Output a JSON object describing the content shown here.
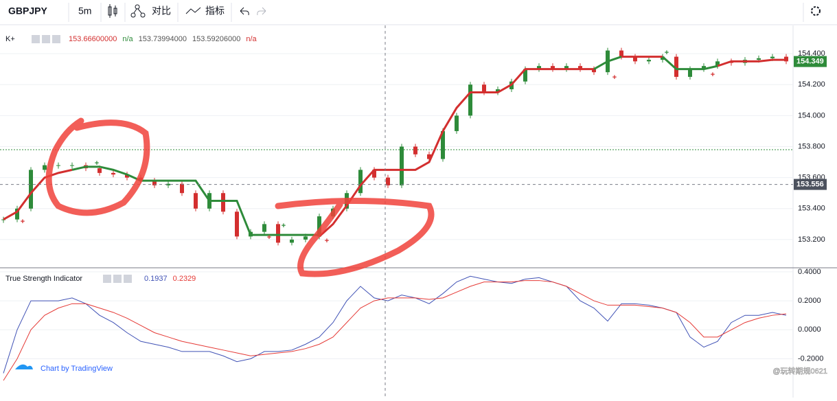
{
  "toolbar": {
    "symbol": "GBPJPY",
    "interval": "5m",
    "compare": "对比",
    "indicators": "指标"
  },
  "branding": "Chart by TradingView",
  "watermark": "@玩转期规0621",
  "chart_data": [
    {
      "type": "candlestick",
      "name": "K+",
      "readout": [
        "153.66600000",
        "n/a",
        "153.73994000",
        "153.59206000",
        "n/a"
      ],
      "close": [
        153.33,
        153.4,
        153.65,
        153.68,
        153.68,
        153.68,
        153.66,
        153.63,
        153.62,
        153.6,
        153.58,
        153.55,
        153.56,
        153.5,
        153.4,
        153.5,
        153.38,
        153.22,
        153.25,
        153.3,
        153.18,
        153.2,
        153.22,
        153.35,
        153.4,
        153.5,
        153.65,
        153.6,
        153.55,
        153.8,
        153.75,
        153.72,
        153.9,
        154.0,
        154.2,
        154.15,
        154.17,
        154.22,
        154.3,
        154.32,
        154.3,
        154.32,
        154.3,
        154.28,
        154.42,
        154.38,
        154.35,
        154.36,
        154.38,
        154.25,
        154.3,
        154.32,
        154.35,
        154.34,
        154.36,
        154.37,
        154.38,
        154.35
      ],
      "series": [
        {
          "color": "#d32f2f",
          "values": [
            153.33,
            153.38,
            153.5,
            153.6,
            153.63,
            153.65,
            null,
            null,
            null,
            null,
            null,
            null,
            null,
            null,
            null,
            null,
            null,
            null,
            null,
            null,
            null,
            null,
            null,
            153.22,
            153.3,
            153.42,
            153.55,
            153.65,
            153.65,
            153.65,
            153.65,
            153.7,
            153.9,
            154.05,
            154.15,
            154.15,
            154.15,
            154.2,
            154.3,
            154.3,
            154.3,
            154.3,
            154.3,
            154.3,
            null,
            154.38,
            154.38,
            154.38,
            154.38,
            null,
            null,
            null,
            154.32,
            154.35,
            154.35,
            154.35,
            154.36,
            154.36
          ]
        },
        {
          "color": "#2e8b3a",
          "values": [
            null,
            null,
            null,
            null,
            null,
            153.65,
            153.67,
            153.67,
            153.65,
            153.62,
            153.58,
            153.58,
            153.58,
            153.58,
            153.58,
            153.45,
            153.45,
            153.45,
            153.23,
            153.23,
            153.23,
            153.23,
            153.23,
            153.23,
            null,
            null,
            null,
            null,
            null,
            null,
            null,
            null,
            null,
            null,
            null,
            null,
            null,
            null,
            null,
            null,
            null,
            null,
            null,
            154.3,
            154.35,
            154.38,
            null,
            null,
            154.38,
            154.3,
            154.3,
            154.3,
            154.32,
            null,
            null,
            null,
            null,
            null
          ]
        }
      ],
      "up_color": "#2e8b3a",
      "down_color": "#d32f2f",
      "last_price": 154.349,
      "crosshair_price": 153.556,
      "hline": 153.78,
      "ylim": [
        153.018,
        154.582
      ],
      "yticks": [
        {
          "value": 153.2,
          "label": "153.200"
        },
        {
          "value": 153.4,
          "label": "153.400"
        },
        {
          "value": 153.6,
          "label": "153.600"
        },
        {
          "value": 153.8,
          "label": "153.800"
        },
        {
          "value": 154.0,
          "label": "154.000"
        },
        {
          "value": 154.2,
          "label": "154.200"
        },
        {
          "value": 154.4,
          "label": "154.400"
        }
      ],
      "grid": true
    },
    {
      "type": "line",
      "name": "True Strength Indicator",
      "readout": [
        0.1937,
        0.2329
      ],
      "series": [
        {
          "color": "#3f51b5",
          "values": [
            -0.3,
            0.0,
            0.2,
            0.2,
            0.2,
            0.22,
            0.18,
            0.1,
            0.05,
            -0.02,
            -0.08,
            -0.1,
            -0.12,
            -0.15,
            -0.15,
            -0.15,
            -0.18,
            -0.22,
            -0.2,
            -0.15,
            -0.15,
            -0.14,
            -0.1,
            -0.05,
            0.05,
            0.2,
            0.3,
            0.22,
            0.2,
            0.24,
            0.22,
            0.18,
            0.25,
            0.33,
            0.37,
            0.35,
            0.33,
            0.32,
            0.35,
            0.36,
            0.33,
            0.3,
            0.2,
            0.15,
            0.06,
            0.18,
            0.18,
            0.17,
            0.15,
            0.12,
            -0.05,
            -0.12,
            -0.08,
            0.05,
            0.1,
            0.1,
            0.12,
            0.1
          ]
        },
        {
          "color": "#e53935",
          "values": [
            -0.35,
            -0.2,
            0.0,
            0.1,
            0.15,
            0.18,
            0.18,
            0.15,
            0.12,
            0.08,
            0.03,
            -0.02,
            -0.05,
            -0.08,
            -0.1,
            -0.12,
            -0.14,
            -0.16,
            -0.18,
            -0.17,
            -0.16,
            -0.15,
            -0.13,
            -0.1,
            -0.05,
            0.05,
            0.15,
            0.2,
            0.22,
            0.22,
            0.22,
            0.21,
            0.22,
            0.26,
            0.3,
            0.33,
            0.33,
            0.33,
            0.34,
            0.34,
            0.33,
            0.3,
            0.25,
            0.2,
            0.17,
            0.17,
            0.17,
            0.16,
            0.15,
            0.12,
            0.05,
            -0.05,
            -0.05,
            0.0,
            0.05,
            0.08,
            0.1,
            0.11
          ]
        }
      ],
      "ylim": [
        -0.468,
        0.428
      ],
      "yticks": [
        {
          "value": -0.2,
          "label": "-0.2000"
        },
        {
          "value": 0,
          "label": "0.0000"
        },
        {
          "value": 0.2,
          "label": "0.2000"
        },
        {
          "value": 0.4,
          "label": "0.4000"
        }
      ],
      "grid": true
    }
  ]
}
